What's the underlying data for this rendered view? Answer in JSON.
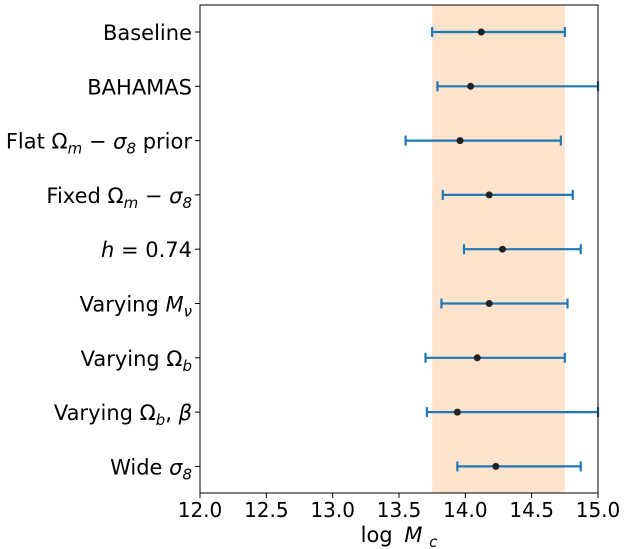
{
  "chart_data": {
    "type": "scatter",
    "xlabel_base": "log",
    "xlabel_var": "M",
    "xlabel_sub": "c",
    "xlim": [
      12.0,
      15.0
    ],
    "xticks": [
      "12.0",
      "12.5",
      "13.0",
      "13.5",
      "14.0",
      "14.5",
      "15.0"
    ],
    "band": {
      "x_min": 13.75,
      "x_max": 14.75,
      "color": "#ffe3cc"
    },
    "errorbar_color": "#1f77b4",
    "point_color": "#222222",
    "categories": [
      {
        "parts": [
          {
            "t": "Baseline"
          }
        ]
      },
      {
        "parts": [
          {
            "t": "BAHAMAS"
          }
        ]
      },
      {
        "parts": [
          {
            "t": "Flat Ω"
          },
          {
            "t": "m",
            "sub": true
          },
          {
            "t": " − "
          },
          {
            "t": "σ",
            "it": true
          },
          {
            "t": "8",
            "sub": true
          },
          {
            "t": " prior"
          }
        ]
      },
      {
        "parts": [
          {
            "t": "Fixed Ω"
          },
          {
            "t": "m",
            "sub": true
          },
          {
            "t": " − "
          },
          {
            "t": "σ",
            "it": true
          },
          {
            "t": "8",
            "sub": true
          }
        ]
      },
      {
        "parts": [
          {
            "t": "h",
            "it": true
          },
          {
            "t": " = 0.74"
          }
        ]
      },
      {
        "parts": [
          {
            "t": "Varying "
          },
          {
            "t": "M",
            "it": true
          },
          {
            "t": "ν",
            "sub": true
          }
        ]
      },
      {
        "parts": [
          {
            "t": "Varying Ω"
          },
          {
            "t": "b",
            "sub": true
          }
        ]
      },
      {
        "parts": [
          {
            "t": "Varying Ω"
          },
          {
            "t": "b",
            "sub": true
          },
          {
            "t": ", "
          },
          {
            "t": "β",
            "it": true
          }
        ]
      },
      {
        "parts": [
          {
            "t": "Wide "
          },
          {
            "t": "σ",
            "it": true
          },
          {
            "t": "8",
            "sub": true
          }
        ]
      }
    ],
    "points": [
      {
        "x": 14.12,
        "lo": 13.75,
        "hi": 14.75
      },
      {
        "x": 14.04,
        "lo": 13.79,
        "hi": 15.0
      },
      {
        "x": 13.96,
        "lo": 13.55,
        "hi": 14.72
      },
      {
        "x": 14.18,
        "lo": 13.83,
        "hi": 14.81
      },
      {
        "x": 14.28,
        "lo": 13.99,
        "hi": 14.87
      },
      {
        "x": 14.18,
        "lo": 13.82,
        "hi": 14.77
      },
      {
        "x": 14.09,
        "lo": 13.7,
        "hi": 14.75
      },
      {
        "x": 13.94,
        "lo": 13.71,
        "hi": 15.0
      },
      {
        "x": 14.23,
        "lo": 13.94,
        "hi": 14.87
      }
    ]
  }
}
